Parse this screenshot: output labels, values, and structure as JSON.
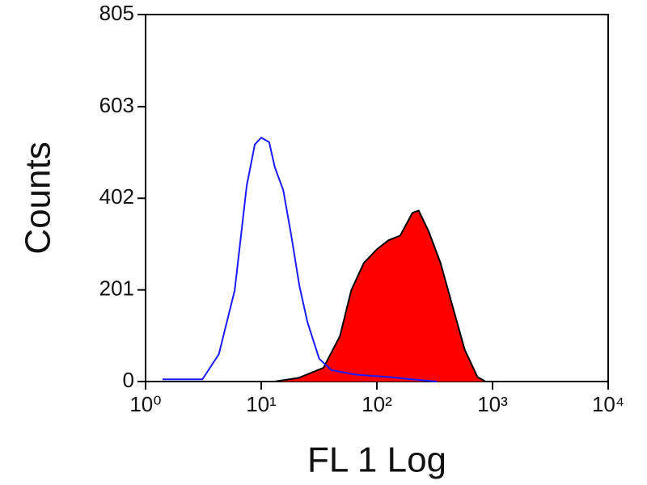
{
  "chart_data": {
    "type": "line",
    "x_label": "FL 1 Log",
    "y_label": "Counts",
    "xscale": "log",
    "xlim": [
      1,
      10000
    ],
    "xticks": [
      {
        "value": 1,
        "label": "10⁰"
      },
      {
        "value": 10,
        "label": "10¹"
      },
      {
        "value": 100,
        "label": "10²"
      },
      {
        "value": 1000,
        "label": "10³"
      },
      {
        "value": 10000,
        "label": "10⁴"
      }
    ],
    "ylim": [
      0,
      805
    ],
    "yticks": [
      0,
      201,
      402,
      603,
      805
    ],
    "series": [
      {
        "color": "#1a1aff",
        "fill": "none",
        "x": [
          1.4,
          3.1,
          4.3,
          5.9,
          7.5,
          8.8,
          10,
          11.7,
          13.1,
          15.5,
          18.2,
          21.4,
          25.1,
          31.7,
          40.5,
          66,
          126,
          240,
          330
        ],
        "values": [
          5,
          5,
          60,
          200,
          430,
          520,
          535,
          525,
          470,
          420,
          320,
          210,
          130,
          50,
          25,
          15,
          10,
          3,
          0
        ]
      },
      {
        "color": "#000000",
        "fill": "#ff0000",
        "x": [
          13,
          21,
          34.5,
          48,
          60,
          77,
          100,
          126,
          159,
          203,
          230,
          280,
          355,
          457,
          575,
          741,
          870
        ],
        "values": [
          0,
          8,
          30,
          100,
          200,
          260,
          290,
          310,
          320,
          370,
          375,
          330,
          260,
          160,
          70,
          10,
          0
        ]
      }
    ]
  }
}
